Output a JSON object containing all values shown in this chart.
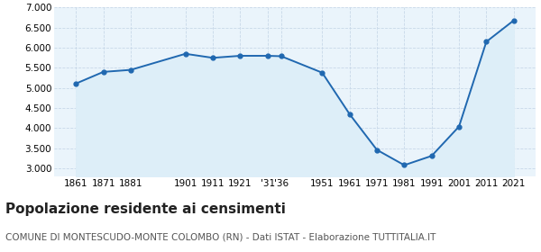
{
  "years": [
    1861,
    1871,
    1881,
    1901,
    1911,
    1921,
    1931,
    1936,
    1951,
    1961,
    1971,
    1981,
    1991,
    2001,
    2011,
    2021
  ],
  "population": [
    5110,
    5400,
    5450,
    5850,
    5750,
    5800,
    5800,
    5790,
    5380,
    4350,
    3460,
    3080,
    3310,
    4040,
    6150,
    6680
  ],
  "line_color": "#2068b0",
  "fill_color": "#ddeef8",
  "marker_color": "#2068b0",
  "bg_color": "#eaf4fb",
  "grid_color": "#c8d8e8",
  "title": "Popolazione residente ai censimenti",
  "subtitle": "COMUNE DI MONTESCUDO-MONTE COLOMBO (RN) - Dati ISTAT - Elaborazione TUTTITALIA.IT",
  "ylim": [
    2800,
    7000
  ],
  "yticks": [
    3000,
    3500,
    4000,
    4500,
    5000,
    5500,
    6000,
    6500,
    7000
  ],
  "xlim": [
    1853,
    2029
  ],
  "xtick_positions": [
    1861,
    1871,
    1881,
    1901,
    1911,
    1921,
    1931,
    1936,
    1951,
    1961,
    1971,
    1981,
    1991,
    2001,
    2011,
    2021
  ],
  "xtick_labels": [
    "1861",
    "1871",
    "1881",
    "1901",
    "1911",
    "1921",
    "'31",
    "'36",
    "1951",
    "1961",
    "1971",
    "1981",
    "1991",
    "2001",
    "2011",
    "2021"
  ],
  "title_fontsize": 11,
  "subtitle_fontsize": 7.5,
  "tick_fontsize": 7.5,
  "ytick_fontsize": 7.5
}
